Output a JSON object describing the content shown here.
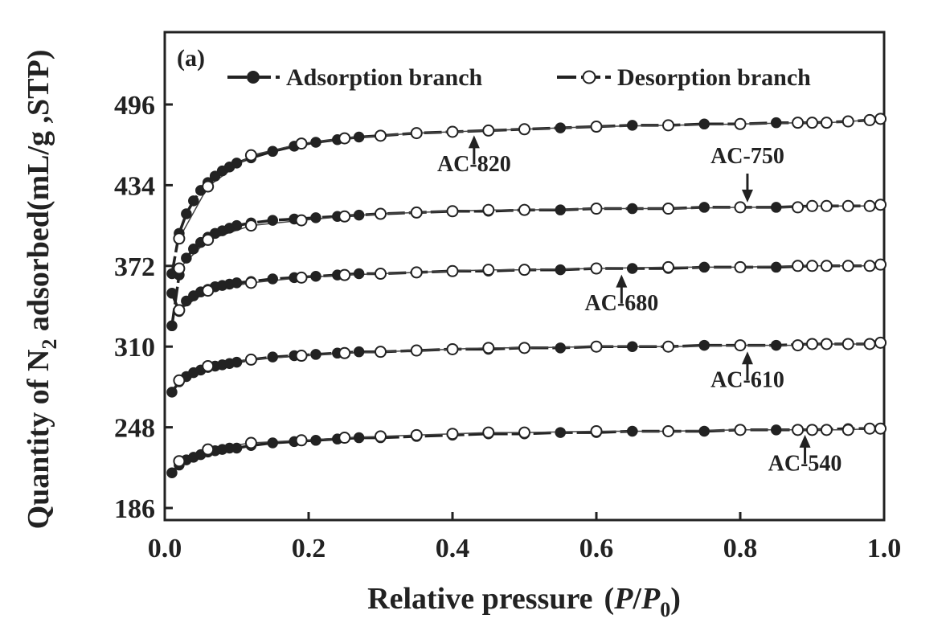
{
  "chart_data": {
    "type": "line",
    "panel_label": "(a)",
    "xlabel": {
      "prefix": "Relative pressure",
      "open": "(",
      "p": "P",
      "slash": "/",
      "p0": "P",
      "sub": "0",
      "close": ")"
    },
    "ylabel": {
      "pre": "Quantity of N",
      "sub": "2",
      "post": " adsorbed(mL/g ,STP)"
    },
    "xlim": [
      0.0,
      1.0
    ],
    "ylim": [
      186,
      496
    ],
    "xticks": [
      "0.0",
      "0.2",
      "0.4",
      "0.6",
      "0.8",
      "1.0"
    ],
    "yticks": [
      "186",
      "248",
      "310",
      "372",
      "434",
      "496"
    ],
    "legend": {
      "placement": "top",
      "entries": [
        {
          "label": "Adsorption branch",
          "marker": "filled"
        },
        {
          "label": "Desorption branch",
          "marker": "open"
        }
      ]
    },
    "x_adsorption": [
      0.01,
      0.02,
      0.03,
      0.04,
      0.05,
      0.06,
      0.07,
      0.08,
      0.09,
      0.1,
      0.12,
      0.15,
      0.18,
      0.21,
      0.24,
      0.27,
      0.3,
      0.35,
      0.4,
      0.45,
      0.5,
      0.55,
      0.6,
      0.65,
      0.7,
      0.75,
      0.8,
      0.85,
      0.9,
      0.95,
      0.98,
      0.995
    ],
    "x_desorption": [
      0.995,
      0.98,
      0.95,
      0.92,
      0.9,
      0.88,
      0.8,
      0.7,
      0.6,
      0.5,
      0.45,
      0.4,
      0.35,
      0.3,
      0.25,
      0.19,
      0.12,
      0.06,
      0.02
    ],
    "series": [
      {
        "label": "AC-820",
        "adsorption": [
          366,
          397,
          412,
          422,
          430,
          436,
          441,
          445,
          448,
          451,
          455,
          460,
          464,
          467,
          469,
          471,
          472,
          474,
          475,
          476,
          477,
          478,
          479,
          480,
          480,
          481,
          481,
          482,
          482,
          483,
          484,
          485
        ],
        "desorption": [
          485,
          484,
          483,
          482,
          482,
          482,
          481,
          480,
          479,
          477,
          476,
          475,
          474,
          472,
          470,
          466,
          457,
          433,
          393
        ]
      },
      {
        "label": "AC-750",
        "adsorption": [
          326,
          365,
          378,
          385,
          390,
          394,
          397,
          399,
          401,
          403,
          405,
          407,
          408,
          409,
          410,
          411,
          412,
          413,
          414,
          414,
          415,
          415,
          416,
          416,
          416,
          417,
          417,
          417,
          418,
          418,
          418,
          419
        ],
        "desorption": [
          419,
          418,
          418,
          418,
          418,
          417,
          417,
          416,
          416,
          415,
          415,
          414,
          413,
          412,
          410,
          407,
          403,
          392,
          370
        ]
      },
      {
        "label": "AC-680",
        "adsorption": [
          351,
          337,
          345,
          349,
          352,
          354,
          356,
          357,
          358,
          359,
          360,
          362,
          363,
          364,
          365,
          366,
          366,
          367,
          368,
          368,
          369,
          369,
          370,
          370,
          370,
          371,
          371,
          371,
          372,
          372,
          372,
          373
        ],
        "desorption": [
          373,
          372,
          372,
          372,
          372,
          372,
          371,
          371,
          370,
          369,
          369,
          368,
          367,
          366,
          365,
          363,
          359,
          353,
          338
        ]
      },
      {
        "label": "AC-610",
        "adsorption": [
          275,
          283,
          287,
          290,
          292,
          294,
          295,
          296,
          297,
          298,
          300,
          302,
          303,
          304,
          305,
          306,
          306,
          307,
          308,
          308,
          309,
          309,
          310,
          310,
          310,
          311,
          311,
          311,
          312,
          312,
          312,
          313
        ],
        "desorption": [
          313,
          312,
          312,
          312,
          312,
          311,
          311,
          310,
          310,
          309,
          309,
          308,
          307,
          306,
          305,
          303,
          300,
          295,
          284
        ]
      },
      {
        "label": "AC-540",
        "adsorption": [
          213,
          219,
          223,
          225,
          227,
          229,
          230,
          231,
          232,
          232,
          234,
          236,
          237,
          238,
          239,
          240,
          240,
          241,
          242,
          243,
          243,
          244,
          244,
          245,
          245,
          245,
          246,
          246,
          246,
          247,
          247,
          247
        ],
        "desorption": [
          247,
          247,
          246,
          246,
          246,
          246,
          246,
          245,
          245,
          244,
          244,
          243,
          242,
          241,
          240,
          238,
          236,
          231,
          222
        ]
      }
    ],
    "annotations": [
      {
        "text": "AC-820",
        "x": 0.43,
        "y": 476,
        "dir": "up",
        "label_y": 451
      },
      {
        "text": "AC-750",
        "x": 0.81,
        "y": 417,
        "dir": "down",
        "label_y": 457
      },
      {
        "text": "AC-680",
        "x": 0.635,
        "y": 369,
        "dir": "up",
        "label_y": 344
      },
      {
        "text": "AC-610",
        "x": 0.81,
        "y": 310,
        "dir": "up",
        "label_y": 285
      },
      {
        "text": "AC-540",
        "x": 0.89,
        "y": 246,
        "dir": "up",
        "label_y": 221
      }
    ]
  }
}
